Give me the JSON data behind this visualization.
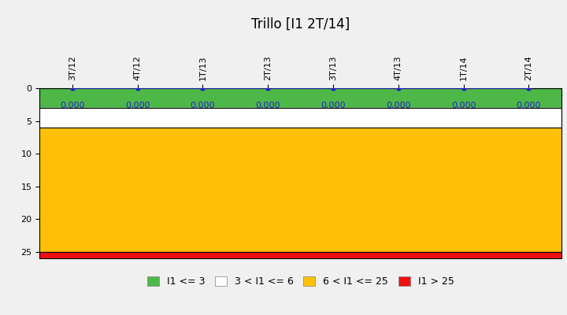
{
  "title": "Trillo [I1 2T/14]",
  "x_labels": [
    "3T/12",
    "4T/12",
    "1T/13",
    "2T/13",
    "3T/13",
    "4T/13",
    "1T/14",
    "2T/14"
  ],
  "y_values": [
    0.0,
    0.0,
    0.0,
    0.0,
    0.0,
    0.0,
    0.0,
    0.0
  ],
  "ylim_min": 0,
  "ylim_max": 26,
  "yticks": [
    0,
    5,
    10,
    15,
    20,
    25
  ],
  "bands": [
    {
      "ymin": 0,
      "ymax": 3,
      "color": "#4DB848",
      "label": "I1 <= 3"
    },
    {
      "ymin": 3,
      "ymax": 6,
      "color": "#FFFFFF",
      "label": "3 < I1 <= 6"
    },
    {
      "ymin": 6,
      "ymax": 25,
      "color": "#FFC107",
      "label": "6 < I1 <= 25"
    },
    {
      "ymin": 25,
      "ymax": 26,
      "color": "#EE1111",
      "label": "I1 > 25"
    }
  ],
  "line_color": "#2222CC",
  "marker_color": "#2222CC",
  "data_label_color": "#2222CC",
  "data_label_text": "0,000",
  "title_fontsize": 12,
  "tick_fontsize": 8,
  "data_label_fontsize": 8,
  "background_color": "#F0F0F0",
  "plot_background": "#FFFFFF",
  "band_boundary_lines": [
    0,
    3,
    6,
    25
  ],
  "figwidth": 7.2,
  "figheight": 4.0,
  "dpi": 100
}
